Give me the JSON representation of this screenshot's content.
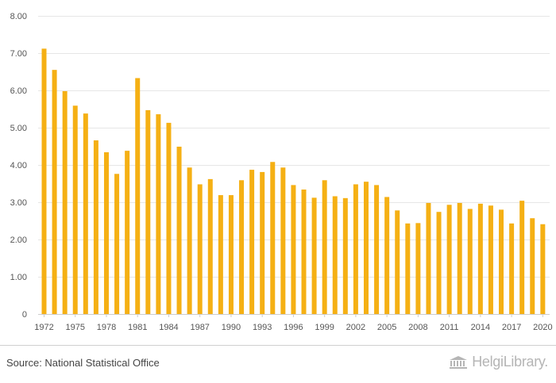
{
  "chart_data": {
    "type": "bar",
    "title": "",
    "xlabel": "",
    "ylabel": "",
    "ylim": [
      0,
      8
    ],
    "yticks": [
      "0",
      "1.00",
      "2.00",
      "3.00",
      "4.00",
      "5.00",
      "6.00",
      "7.00",
      "8.00"
    ],
    "xtick_labels": [
      "1972",
      "1975",
      "1978",
      "1981",
      "1984",
      "1987",
      "1990",
      "1993",
      "1996",
      "1999",
      "2002",
      "2005",
      "2008",
      "2011",
      "2014",
      "2017",
      "2020"
    ],
    "grid": true,
    "color": "#f5b014",
    "categories": [
      "1972",
      "1973",
      "1974",
      "1975",
      "1976",
      "1977",
      "1978",
      "1979",
      "1980",
      "1981",
      "1982",
      "1983",
      "1984",
      "1985",
      "1986",
      "1987",
      "1988",
      "1989",
      "1990",
      "1991",
      "1992",
      "1993",
      "1994",
      "1995",
      "1996",
      "1997",
      "1998",
      "1999",
      "2000",
      "2001",
      "2002",
      "2003",
      "2004",
      "2005",
      "2006",
      "2007",
      "2008",
      "2009",
      "2010",
      "2011",
      "2012",
      "2013",
      "2014",
      "2015",
      "2016",
      "2017",
      "2018",
      "2019",
      "2020"
    ],
    "values": [
      7.12,
      6.55,
      5.98,
      5.59,
      5.38,
      4.66,
      4.34,
      3.76,
      4.38,
      6.33,
      5.47,
      5.36,
      5.13,
      4.49,
      3.93,
      3.48,
      3.62,
      3.19,
      3.19,
      3.59,
      3.87,
      3.81,
      4.08,
      3.93,
      3.46,
      3.34,
      3.12,
      3.59,
      3.16,
      3.11,
      3.48,
      3.55,
      3.46,
      3.14,
      2.78,
      2.43,
      2.44,
      2.98,
      2.74,
      2.93,
      2.98,
      2.82,
      2.96,
      2.91,
      2.8,
      2.43,
      3.04,
      2.57,
      2.41
    ]
  },
  "footer": {
    "source": "Source: National Statistical Office",
    "logo_text": "HelgiLibrary."
  }
}
